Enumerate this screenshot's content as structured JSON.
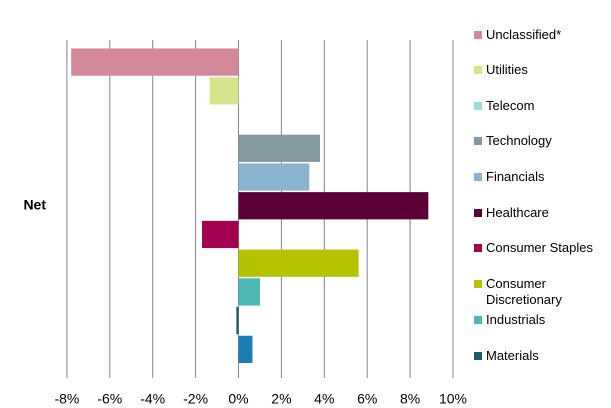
{
  "chart_data": {
    "type": "bar",
    "orientation": "horizontal",
    "categories": [
      "Net"
    ],
    "series": [
      {
        "name": "Unclassified*",
        "color": "#d4899b",
        "values": [
          -7.8
        ]
      },
      {
        "name": "Utilities",
        "color": "#d8e48c",
        "values": [
          -1.35
        ]
      },
      {
        "name": "Telecom",
        "color": "#9edcd6",
        "values": [
          0
        ]
      },
      {
        "name": "Technology",
        "color": "#8598a0",
        "values": [
          3.8
        ]
      },
      {
        "name": "Financials",
        "color": "#89b5d0",
        "values": [
          3.3
        ]
      },
      {
        "name": "Healthcare",
        "color": "#5b0039",
        "values": [
          8.85
        ]
      },
      {
        "name": "Consumer Staples",
        "color": "#a3004f",
        "values": [
          -1.7
        ]
      },
      {
        "name": "Consumer Discretionary",
        "color": "#b4c300",
        "values": [
          5.6
        ]
      },
      {
        "name": "Industrials",
        "color": "#4cb8b6",
        "values": [
          1.0
        ]
      },
      {
        "name": "Materials",
        "color": "#1d5a6c",
        "values": [
          -0.1
        ]
      },
      {
        "name": null,
        "color": "#1a7eb4",
        "values": [
          0.65
        ]
      }
    ],
    "xlim": [
      -8.5,
      10.5
    ],
    "xticks": [
      {
        "value": -8,
        "label": "-8%"
      },
      {
        "value": -6,
        "label": "-6%"
      },
      {
        "value": -4,
        "label": "-4%"
      },
      {
        "value": -2,
        "label": "-2%"
      },
      {
        "value": 0,
        "label": "0%"
      },
      {
        "value": 2,
        "label": "2%"
      },
      {
        "value": 4,
        "label": "4%"
      },
      {
        "value": 6,
        "label": "6%"
      },
      {
        "value": 8,
        "label": "8%"
      },
      {
        "value": 10,
        "label": "10%"
      }
    ],
    "grid": true,
    "legend": "right"
  }
}
